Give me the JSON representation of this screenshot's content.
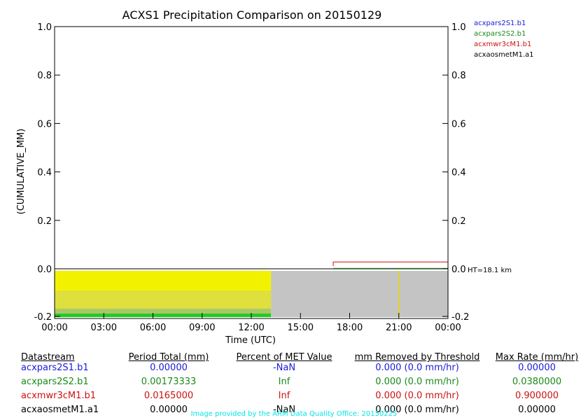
{
  "chart_data": {
    "type": "line",
    "title": "ACXS1 Precipitation Comparison on 20150129",
    "xlabel": "Time (UTC)",
    "ylabel": "(CUMULATIVE_MM)",
    "x_ticks": [
      "00:00",
      "03:00",
      "06:00",
      "09:00",
      "12:00",
      "15:00",
      "18:00",
      "21:00",
      "00:00"
    ],
    "y_ticks": [
      "-0.2",
      "0.0",
      "0.2",
      "0.4",
      "0.6",
      "0.8",
      "1.0"
    ],
    "right_y_ticks": [
      "-0.2",
      "0.0",
      "0.2",
      "0.4",
      "0.6",
      "0.8",
      "1.0"
    ],
    "xlim_hours": [
      0,
      24
    ],
    "ylim": [
      -0.2,
      1.0
    ],
    "right_annotation": "HT=18.1 km",
    "legend_position": "top-right",
    "legend": [
      {
        "name": "acxpars2S1.b1",
        "color": "#1a1adb"
      },
      {
        "name": "acxpars2S2.b1",
        "color": "#1a8a1a"
      },
      {
        "name": "acxmwr3cM1.b1",
        "color": "#cc1111"
      },
      {
        "name": "acxaosmetM1.a1",
        "color": "#000000"
      }
    ],
    "series": [
      {
        "name": "acxpars2S2.b1",
        "color": "#1a8a1a",
        "x_hours": [
          17.0,
          24.0
        ],
        "values": [
          0.0017,
          0.0017
        ]
      },
      {
        "name": "acxmwr3cM1.b1",
        "color": "#cc1111",
        "x_hours": [
          17.0,
          17.0,
          24.0
        ],
        "values": [
          0.0,
          0.0165,
          0.0165
        ]
      }
    ],
    "bottom_panel": {
      "yellow_fill_hours": [
        0,
        13.2
      ],
      "gray_fill_hours": [
        13.2,
        24
      ],
      "marker_hour": 21.0
    }
  },
  "table": {
    "headers": [
      "Datastream",
      "Period Total (mm)",
      "Percent of MET Value",
      "mm Removed by Threshold",
      "Max Rate (mm/hr)"
    ],
    "rows": [
      {
        "color": "#1a1adb",
        "cells": [
          "acxpars2S1.b1",
          "0.00000",
          "-NaN",
          "0.000 (0.0 mm/hr)",
          "0.00000"
        ]
      },
      {
        "color": "#1a8a1a",
        "cells": [
          "acxpars2S2.b1",
          "0.00173333",
          "Inf",
          "0.000 (0.0 mm/hr)",
          "0.0380000"
        ]
      },
      {
        "color": "#cc1111",
        "cells": [
          "acxmwr3cM1.b1",
          "0.0165000",
          "Inf",
          "0.000 (0.0 mm/hr)",
          "0.900000"
        ]
      },
      {
        "color": "#000000",
        "cells": [
          "acxaosmetM1.a1",
          "0.00000",
          "-NaN",
          "0.000 (0.0 mm/hr)",
          "0.00000"
        ]
      }
    ]
  },
  "credit": "Image provided by the ARM Data Quality Office: 20150225"
}
